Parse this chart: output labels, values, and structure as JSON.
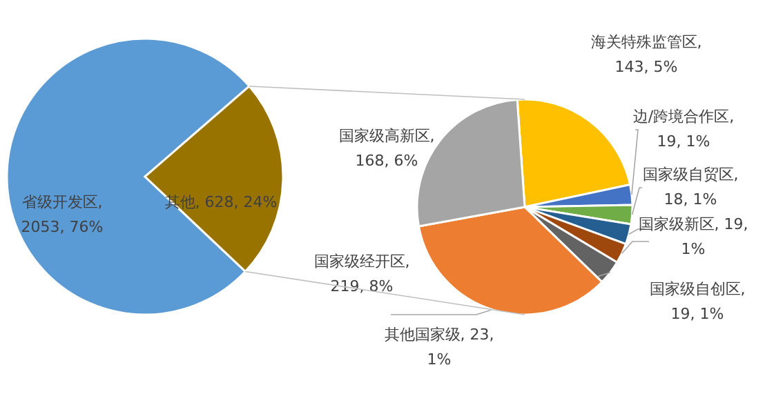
{
  "chart_data": [
    {
      "type": "pie",
      "categories": [
        "省级开发区",
        "其他"
      ],
      "values": [
        2053,
        628
      ],
      "colors": [
        "#5b9bd5",
        "#997300"
      ],
      "value_labels": [
        ", 2053, 76%",
        ", 628, 24%"
      ]
    },
    {
      "type": "pie",
      "categories": [
        "海关特殊监管区",
        "边/跨境合作区",
        "国家级自贸区",
        "国家级新区",
        "国家级自创区",
        "其他国家级",
        "国家级经开区",
        "国家级高新区"
      ],
      "values": [
        143,
        19,
        18,
        19,
        19,
        23,
        219,
        168
      ],
      "colors": [
        "#ffc000",
        "#4472c4",
        "#70ad47",
        "#255e91",
        "#9e480e",
        "#636363",
        "#ed7d31",
        "#a5a5a5"
      ],
      "value_labels": [
        ", 143, 5%",
        ", 19, 1%",
        ", 18, 1%",
        ", 19, 1%",
        ", 19, 1%",
        ", 23, 1%",
        ", 219, 8%",
        ", 168, 6%"
      ]
    }
  ]
}
